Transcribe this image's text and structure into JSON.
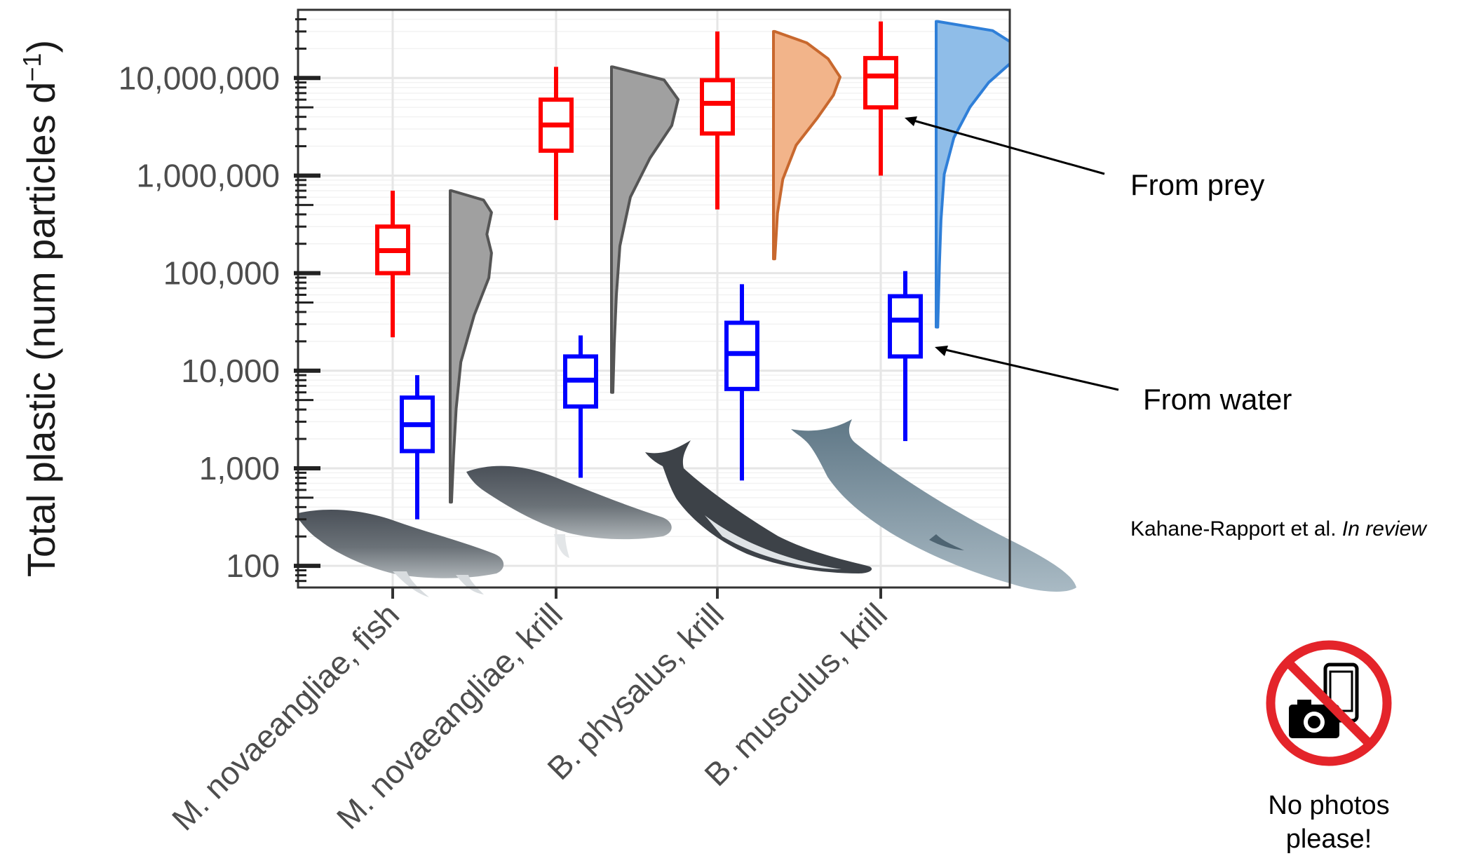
{
  "chart_data": {
    "type": "box",
    "ylabel": "Total plastic (num particles d",
    "ylabel_superscript": "−1",
    "ylabel_close": ")",
    "yscale": "log",
    "ylim": [
      60,
      50000000
    ],
    "yticks": [
      100,
      1000,
      10000,
      100000,
      1000000,
      10000000
    ],
    "ytick_labels": [
      "100",
      "1,000",
      "10,000",
      "100,000",
      "1,000,000",
      "10,000,000"
    ],
    "categories": [
      "M. novaeangliae, fish",
      "M. novaeangliae, krill",
      "B. physalus, krill",
      "B. musculus, krill"
    ],
    "grid": true,
    "series": [
      {
        "name": "From prey",
        "color": "#ff0000",
        "boxes": [
          {
            "min": 22000,
            "q1": 100000,
            "median": 170000,
            "q3": 300000,
            "max": 700000
          },
          {
            "min": 350000,
            "q1": 1800000,
            "median": 3300000,
            "q3": 6000000,
            "max": 13000000
          },
          {
            "min": 450000,
            "q1": 2700000,
            "median": 5500000,
            "q3": 9500000,
            "max": 30000000
          },
          {
            "min": 1000000,
            "q1": 5000000,
            "median": 10500000,
            "q3": 16000000,
            "max": 38000000
          }
        ]
      },
      {
        "name": "From water",
        "color": "#0000ff",
        "boxes": [
          {
            "min": 300,
            "q1": 1500,
            "median": 2800,
            "q3": 5300,
            "max": 9000
          },
          {
            "min": 800,
            "q1": 4300,
            "median": 8000,
            "q3": 14000,
            "max": 23000
          },
          {
            "min": 750,
            "q1": 6500,
            "median": 15000,
            "q3": 31000,
            "max": 77000
          },
          {
            "min": 1900,
            "q1": 14000,
            "median": 33000,
            "q3": 58000,
            "max": 105000
          }
        ]
      }
    ],
    "densities": [
      {
        "color": "#a0a0a0",
        "stroke": "#555555",
        "range": [
          450,
          700000
        ],
        "profile": [
          [
            0,
            0.02
          ],
          [
            0.15,
            0.05
          ],
          [
            0.3,
            0.09
          ],
          [
            0.45,
            0.16
          ],
          [
            0.6,
            0.36
          ],
          [
            0.72,
            0.58
          ],
          [
            0.8,
            0.62
          ],
          [
            0.86,
            0.55
          ],
          [
            0.93,
            0.62
          ],
          [
            0.97,
            0.5
          ],
          [
            1,
            0.02
          ]
        ]
      },
      {
        "color": "#a0a0a0",
        "stroke": "#555555",
        "range": [
          6000,
          13000000
        ],
        "profile": [
          [
            0,
            0.02
          ],
          [
            0.15,
            0.04
          ],
          [
            0.3,
            0.07
          ],
          [
            0.45,
            0.12
          ],
          [
            0.6,
            0.27
          ],
          [
            0.72,
            0.55
          ],
          [
            0.82,
            0.86
          ],
          [
            0.9,
            0.95
          ],
          [
            0.96,
            0.75
          ],
          [
            1,
            0.02
          ]
        ]
      },
      {
        "color": "#f2b48a",
        "stroke": "#c8682e",
        "range": [
          140000,
          30000000
        ],
        "profile": [
          [
            0,
            0.02
          ],
          [
            0.2,
            0.06
          ],
          [
            0.35,
            0.14
          ],
          [
            0.5,
            0.34
          ],
          [
            0.62,
            0.66
          ],
          [
            0.72,
            0.9
          ],
          [
            0.8,
            1.0
          ],
          [
            0.88,
            0.82
          ],
          [
            0.95,
            0.5
          ],
          [
            1,
            0.02
          ]
        ]
      },
      {
        "color": "#8fbde8",
        "stroke": "#2f7fd8",
        "range": [
          28000,
          38000000
        ],
        "profile": [
          [
            0,
            0.02
          ],
          [
            0.2,
            0.04
          ],
          [
            0.35,
            0.06
          ],
          [
            0.5,
            0.1
          ],
          [
            0.62,
            0.22
          ],
          [
            0.72,
            0.42
          ],
          [
            0.8,
            0.65
          ],
          [
            0.87,
            0.95
          ],
          [
            0.92,
            1.0
          ],
          [
            0.97,
            0.7
          ],
          [
            1,
            0.02
          ]
        ]
      }
    ],
    "annotations": [
      {
        "text": "From prey",
        "target": "B. musculus, krill prey median"
      },
      {
        "text": "From water",
        "target": "B. musculus, krill water density tail"
      }
    ]
  },
  "citation": {
    "authors": "Kahane-Rapport et al.",
    "status": "In review"
  },
  "no_photos": {
    "line1": "No photos",
    "line2": "please!",
    "icon": "no-photos-icon"
  }
}
